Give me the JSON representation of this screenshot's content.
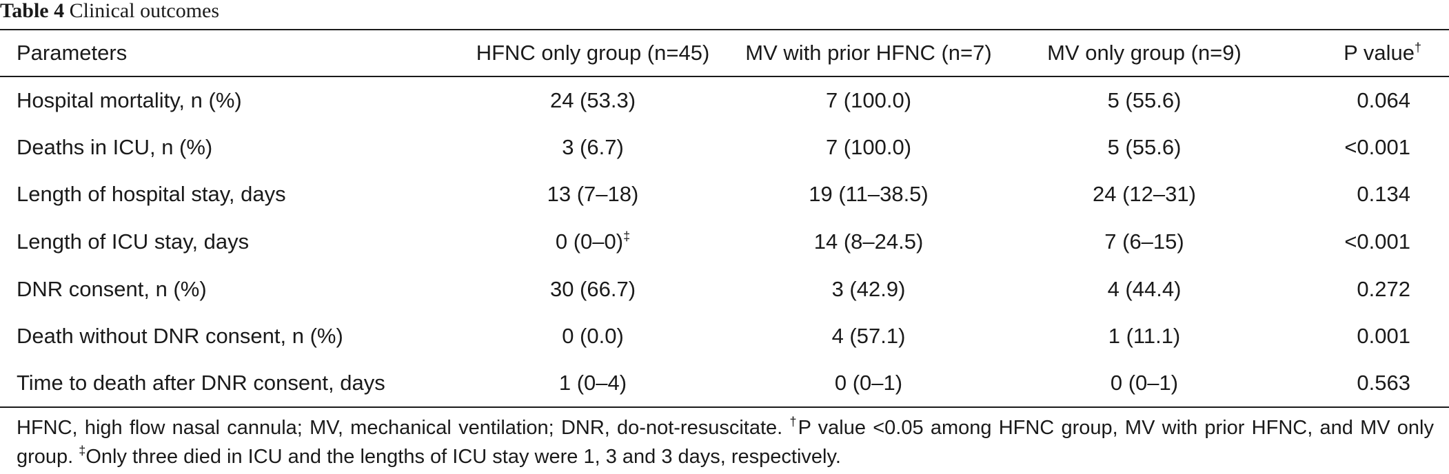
{
  "caption": {
    "label": "Table 4",
    "title": "Clinical outcomes"
  },
  "table": {
    "headers": {
      "parameters": "Parameters",
      "hfnc_only": "HFNC only group (n=45)",
      "mv_prior": "MV with prior HFNC (n=7)",
      "mv_only": "MV only group (n=9)",
      "p_value": "P value",
      "p_value_mark": "†"
    },
    "rows": [
      {
        "param": "Hospital mortality, n (%)",
        "hfnc": "24 (53.3)",
        "hfnc_mark": "",
        "mv_prior": "7 (100.0)",
        "mv_only": "5 (55.6)",
        "p": "0.064"
      },
      {
        "param": "Deaths in ICU, n (%)",
        "hfnc": "3 (6.7)",
        "hfnc_mark": "",
        "mv_prior": "7 (100.0)",
        "mv_only": "5 (55.6)",
        "p": "<0.001"
      },
      {
        "param": "Length of hospital stay, days",
        "hfnc": "13 (7–18)",
        "hfnc_mark": "",
        "mv_prior": "19 (11–38.5)",
        "mv_only": "24 (12–31)",
        "p": "0.134"
      },
      {
        "param": "Length of ICU stay, days",
        "hfnc": "0 (0–0)",
        "hfnc_mark": "‡",
        "mv_prior": "14 (8–24.5)",
        "mv_only": "7 (6–15)",
        "p": "<0.001"
      },
      {
        "param": "DNR consent, n (%)",
        "hfnc": "30 (66.7)",
        "hfnc_mark": "",
        "mv_prior": "3 (42.9)",
        "mv_only": "4 (44.4)",
        "p": "0.272"
      },
      {
        "param": "Death without DNR consent, n (%)",
        "hfnc": "0 (0.0)",
        "hfnc_mark": "",
        "mv_prior": "4 (57.1)",
        "mv_only": "1 (11.1)",
        "p": "0.001"
      },
      {
        "param": "Time to death after DNR consent, days",
        "hfnc": "1 (0–4)",
        "hfnc_mark": "",
        "mv_prior": "0 (0–1)",
        "mv_only": "0 (0–1)",
        "p": "0.563"
      }
    ]
  },
  "footnote": {
    "abbreviations": "HFNC, high flow nasal cannula; MV, mechanical ventilation; DNR, do-not-resuscitate.",
    "dagger_mark": "†",
    "dagger_text": "P value <0.05 among HFNC group, MV with prior HFNC, and MV only group.",
    "double_dagger_mark": "‡",
    "double_dagger_text": "Only three died in ICU and the lengths of ICU stay were 1, 3 and 3 days, respectively."
  }
}
